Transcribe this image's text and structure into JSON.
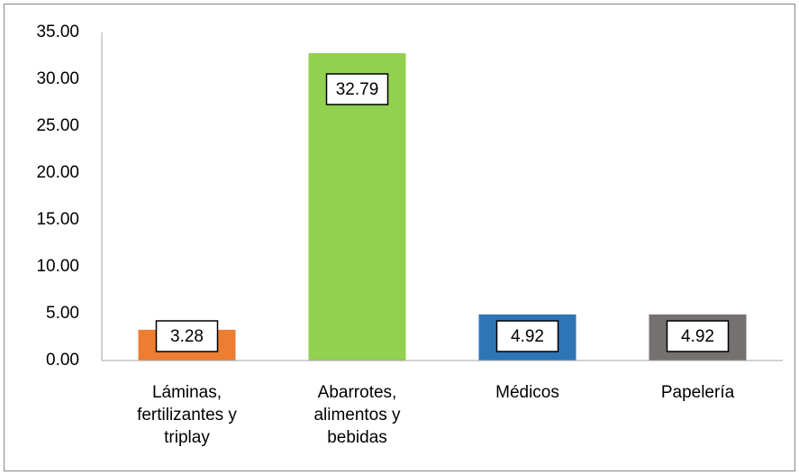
{
  "chart_data": {
    "type": "bar",
    "categories": [
      "Láminas, fertilizantes y triplay",
      "Abarrotes, alimentos y bebidas",
      "Médicos",
      "Papelería"
    ],
    "values": [
      3.28,
      32.79,
      4.92,
      4.92
    ],
    "colors": [
      "#ed7d31",
      "#92d050",
      "#2e75b6",
      "#767171"
    ],
    "ylim": [
      0,
      35
    ],
    "yticks": [
      {
        "value": 0,
        "label": "0.00"
      },
      {
        "value": 5,
        "label": "5.00"
      },
      {
        "value": 10,
        "label": "10.00"
      },
      {
        "value": 15,
        "label": "15.00"
      },
      {
        "value": 20,
        "label": "20.00"
      },
      {
        "value": 25,
        "label": "25.00"
      },
      {
        "value": 30,
        "label": "30.00"
      },
      {
        "value": 35,
        "label": "35.00"
      }
    ],
    "grid": false
  }
}
